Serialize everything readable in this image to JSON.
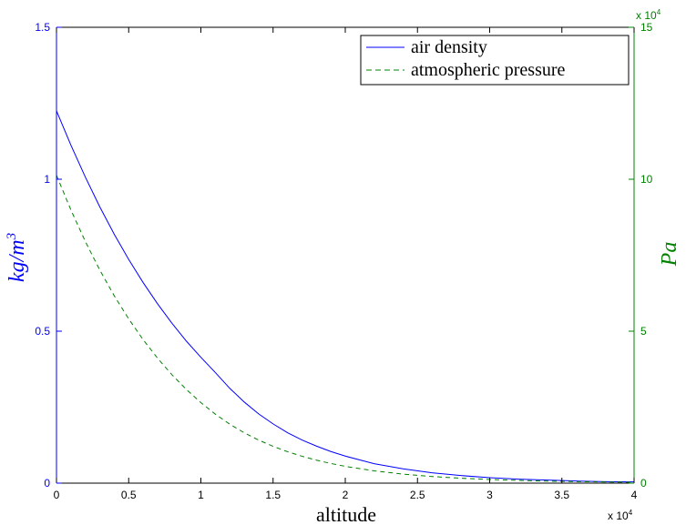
{
  "chart_data": {
    "type": "line",
    "xlabel": "altitude",
    "x_exponent_label": "x 10",
    "x_exponent_power": "4",
    "xlim": [
      0,
      40000
    ],
    "x_ticks": [
      0,
      5000,
      10000,
      15000,
      20000,
      25000,
      30000,
      35000,
      40000
    ],
    "x_tick_labels": [
      "0",
      "0.5",
      "1",
      "1.5",
      "2",
      "2.5",
      "3",
      "3.5",
      "4"
    ],
    "left_axis": {
      "ylabel_base": "kg/m",
      "ylabel_power": "3",
      "ylim": [
        0,
        1.5
      ],
      "ticks": [
        0,
        0.5,
        1,
        1.5
      ],
      "tick_labels": [
        "0",
        "0.5",
        "1",
        "1.5"
      ],
      "color": "#0000ff"
    },
    "right_axis": {
      "ylabel": "Pa",
      "ylim": [
        0,
        150000
      ],
      "ticks": [
        0,
        50000,
        100000,
        150000
      ],
      "tick_labels": [
        "0",
        "5",
        "10",
        "15"
      ],
      "exponent_label": "x 10",
      "exponent_power": "4",
      "color": "#008000"
    },
    "grid": false,
    "legend_position": "top-right",
    "series": [
      {
        "name": "air density",
        "axis": "left",
        "color": "#0000ff",
        "style": "solid",
        "x": [
          0,
          1000,
          2000,
          3000,
          4000,
          5000,
          6000,
          7000,
          8000,
          9000,
          10000,
          11000,
          12000,
          13000,
          14000,
          15000,
          16000,
          17000,
          18000,
          19000,
          20000,
          22000,
          24000,
          26000,
          28000,
          30000,
          32000,
          34000,
          36000,
          38000,
          40000
        ],
        "values": [
          1.225,
          1.112,
          1.007,
          0.909,
          0.819,
          0.736,
          0.66,
          0.59,
          0.526,
          0.467,
          0.414,
          0.364,
          0.312,
          0.267,
          0.228,
          0.195,
          0.166,
          0.142,
          0.122,
          0.104,
          0.089,
          0.064,
          0.047,
          0.034,
          0.025,
          0.018,
          0.013,
          0.01,
          0.007,
          0.005,
          0.004
        ]
      },
      {
        "name": "atmospheric pressure",
        "axis": "right",
        "color": "#008000",
        "style": "dashed",
        "x": [
          0,
          1000,
          2000,
          3000,
          4000,
          5000,
          6000,
          7000,
          8000,
          9000,
          10000,
          11000,
          12000,
          13000,
          14000,
          15000,
          16000,
          17000,
          18000,
          19000,
          20000,
          22000,
          24000,
          26000,
          28000,
          30000,
          32000,
          34000,
          36000,
          38000,
          40000
        ],
        "values": [
          101325,
          89880,
          79500,
          70120,
          61660,
          54050,
          47220,
          41110,
          35650,
          30800,
          26500,
          22700,
          19400,
          16580,
          14170,
          12110,
          10350,
          8850,
          7570,
          6470,
          5530,
          4050,
          2970,
          2190,
          1620,
          1200,
          890,
          660,
          500,
          380,
          290
        ]
      }
    ]
  }
}
